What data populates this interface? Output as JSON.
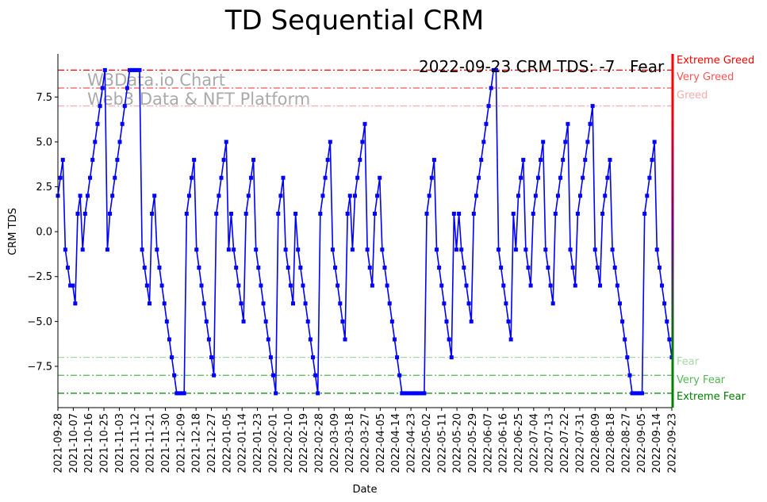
{
  "chart_data": {
    "type": "line",
    "title": "TD Sequential CRM",
    "xlabel": "Date",
    "ylabel": "CRM TDS",
    "ylim": [
      -9.8,
      9.9
    ],
    "yticks": [
      -7.5,
      -5.0,
      -2.5,
      0.0,
      2.5,
      5.0,
      7.5
    ],
    "ytick_labels": [
      "−7.5",
      "−5.0",
      "−2.5",
      "0.0",
      "2.5",
      "5.0",
      "7.5"
    ],
    "xticks": [
      "2021-09-28",
      "2021-10-07",
      "2021-10-16",
      "2021-10-25",
      "2021-11-03",
      "2021-11-12",
      "2021-11-21",
      "2021-11-30",
      "2021-12-09",
      "2021-12-18",
      "2021-12-27",
      "2022-01-05",
      "2022-01-14",
      "2022-01-23",
      "2022-02-01",
      "2022-02-10",
      "2022-02-19",
      "2022-02-28",
      "2022-03-09",
      "2022-03-18",
      "2022-03-27",
      "2022-04-05",
      "2022-04-14",
      "2022-04-23",
      "2022-05-02",
      "2022-05-11",
      "2022-05-20",
      "2022-05-29",
      "2022-06-07",
      "2022-06-16",
      "2022-06-25",
      "2022-07-04",
      "2022-07-13",
      "2022-07-22",
      "2022-07-31",
      "2022-08-09",
      "2022-08-18",
      "2022-08-27",
      "2022-09-05",
      "2022-09-14",
      "2022-09-23"
    ],
    "series": [
      {
        "color": "#0000ff",
        "marker": "square",
        "values": [
          2,
          3,
          4,
          -1,
          -2,
          -3,
          -3,
          -4,
          1,
          2,
          -1,
          1,
          2,
          3,
          4,
          5,
          6,
          7,
          8,
          9,
          -1,
          1,
          2,
          3,
          4,
          5,
          6,
          7,
          8,
          9,
          9,
          9,
          9,
          9,
          -1,
          -2,
          -3,
          -4,
          1,
          2,
          -1,
          -2,
          -3,
          -4,
          -5,
          -6,
          -7,
          -8,
          -9,
          -9,
          -9,
          -9,
          1,
          2,
          3,
          4,
          -1,
          -2,
          -3,
          -4,
          -5,
          -6,
          -7,
          -8,
          1,
          2,
          3,
          4,
          5,
          -1,
          1,
          -1,
          -2,
          -3,
          -4,
          -5,
          1,
          2,
          3,
          4,
          -1,
          -2,
          -3,
          -4,
          -5,
          -6,
          -7,
          -8,
          -9,
          1,
          2,
          3,
          -1,
          -2,
          -3,
          -4,
          1,
          -1,
          -2,
          -3,
          -4,
          -5,
          -6,
          -7,
          -8,
          -9,
          1,
          2,
          3,
          4,
          5,
          -1,
          -2,
          -3,
          -4,
          -5,
          -6,
          1,
          2,
          -1,
          2,
          3,
          4,
          5,
          6,
          -1,
          -2,
          -3,
          1,
          2,
          3,
          -1,
          -2,
          -3,
          -4,
          -5,
          -6,
          -7,
          -8,
          -9,
          -9,
          -9,
          -9,
          -9,
          -9,
          -9,
          -9,
          -9,
          -9,
          1,
          2,
          3,
          4,
          -1,
          -2,
          -3,
          -4,
          -5,
          -6,
          -7,
          1,
          -1,
          1,
          -1,
          -2,
          -3,
          -4,
          -5,
          1,
          2,
          3,
          4,
          5,
          6,
          7,
          8,
          9,
          9,
          -1,
          -2,
          -3,
          -4,
          -5,
          -6,
          1,
          -1,
          2,
          3,
          4,
          -1,
          -2,
          -3,
          1,
          2,
          3,
          4,
          5,
          -1,
          -2,
          -3,
          -4,
          1,
          2,
          3,
          4,
          5,
          6,
          -1,
          -2,
          -3,
          1,
          2,
          3,
          4,
          5,
          6,
          7,
          -1,
          -2,
          -3,
          1,
          2,
          3,
          4,
          -1,
          -2,
          -3,
          -4,
          -5,
          -6,
          -7,
          -8,
          -9,
          -9,
          -9,
          -9,
          -9,
          1,
          2,
          3,
          4,
          5,
          -1,
          -2,
          -3,
          -4,
          -5,
          -6,
          -7
        ]
      }
    ],
    "zones": [
      {
        "label": "Extreme Greed",
        "value": 9,
        "color": "#ff0000"
      },
      {
        "label": "Very Greed",
        "value": 8,
        "color": "#ff5555"
      },
      {
        "label": "Greed",
        "value": 7,
        "color": "#ffaaaa"
      },
      {
        "label": "Fear",
        "value": -7,
        "color": "#a8d8a8"
      },
      {
        "label": "Very Fear",
        "value": -8,
        "color": "#55b855"
      },
      {
        "label": "Extreme Fear",
        "value": -9,
        "color": "#008000"
      }
    ],
    "watermark": [
      "W3Data.io Chart",
      "Web3 Data & NFT Platform"
    ],
    "status_text": "2022-09-23 CRM TDS: -7",
    "status_label": "Fear",
    "status_label_color": "#a8d8a8",
    "line_color": "#0000ff",
    "grid": false
  }
}
